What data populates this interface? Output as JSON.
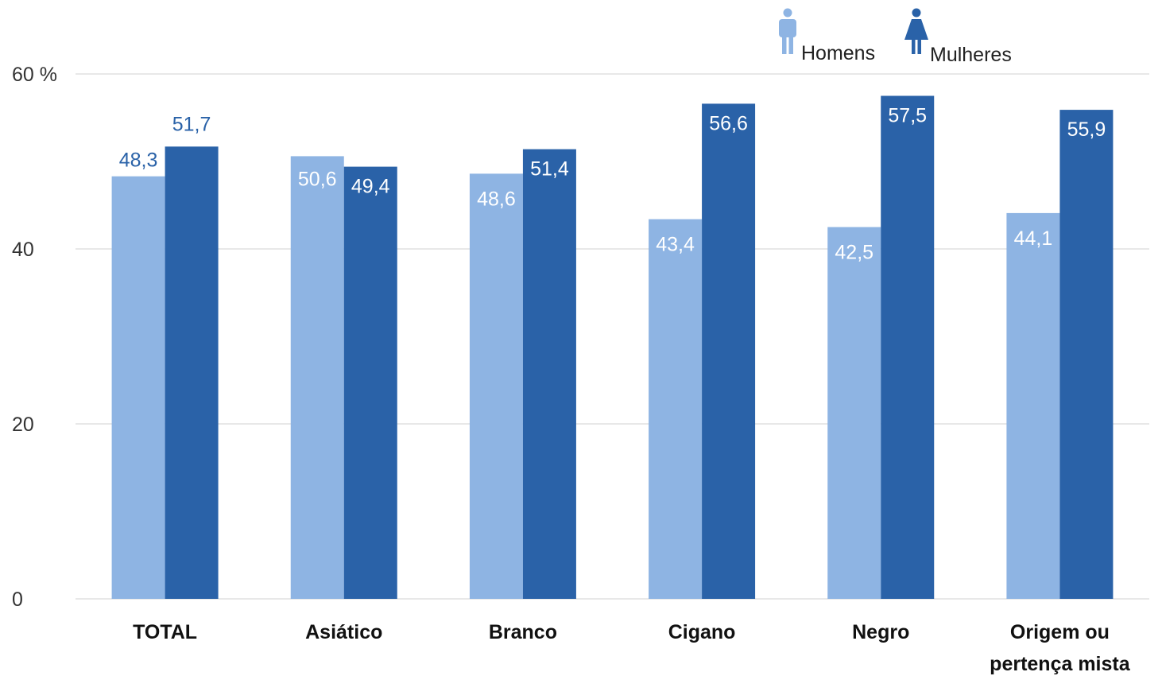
{
  "chart_data": {
    "type": "bar",
    "categories": [
      "TOTAL",
      "Asiático",
      "Branco",
      "Cigano",
      "Negro",
      [
        "Origem ou",
        "pertença mista"
      ]
    ],
    "series": [
      {
        "name": "Homens",
        "values": [
          48.3,
          50.6,
          48.6,
          43.4,
          42.5,
          44.1
        ],
        "labels": [
          "48,3",
          "50,6",
          "48,6",
          "43,4",
          "42,5",
          "44,1"
        ],
        "color": "#8eb4e3",
        "icon": "man-icon"
      },
      {
        "name": "Mulheres",
        "values": [
          51.7,
          49.4,
          51.4,
          56.6,
          57.5,
          55.9
        ],
        "labels": [
          "51,7",
          "49,4",
          "51,4",
          "56,6",
          "57,5",
          "55,9"
        ],
        "color": "#2a62a8",
        "icon": "woman-icon"
      }
    ],
    "yticks": [
      {
        "value": 0,
        "label": "0"
      },
      {
        "value": 20,
        "label": "20"
      },
      {
        "value": 40,
        "label": "40"
      },
      {
        "value": 60,
        "label": "60 %"
      }
    ],
    "ylim": [
      0,
      60
    ],
    "grid": true,
    "legend": "top-right",
    "gridline_color": "#d9d9d9",
    "label_inside_color": "#ffffff",
    "label_outside_colors": [
      "#2a62a8",
      "#2a62a8"
    ]
  }
}
